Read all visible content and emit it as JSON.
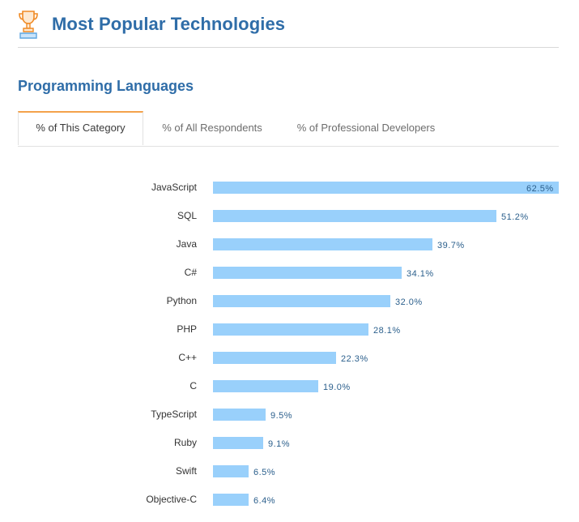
{
  "header": {
    "title": "Most Popular Technologies",
    "icon": "trophy-icon",
    "title_color": "#2f6da8"
  },
  "section": {
    "title": "Programming Languages"
  },
  "tabs": [
    {
      "label": "% of This Category",
      "active": true
    },
    {
      "label": "% of All Respondents",
      "active": false
    },
    {
      "label": "% of Professional Developers",
      "active": false
    }
  ],
  "colors": {
    "bar": "#99d0fb",
    "value_text": "#2b5f8c",
    "tab_accent": "#f4a24b"
  },
  "chart_data": {
    "type": "bar",
    "orientation": "horizontal",
    "title": "",
    "xlabel": "",
    "ylabel": "",
    "xlim": [
      0,
      62.5
    ],
    "grid": false,
    "categories": [
      "JavaScript",
      "SQL",
      "Java",
      "C#",
      "Python",
      "PHP",
      "C++",
      "C",
      "TypeScript",
      "Ruby",
      "Swift",
      "Objective-C"
    ],
    "values": [
      62.5,
      51.2,
      39.7,
      34.1,
      32.0,
      28.1,
      22.3,
      19.0,
      9.5,
      9.1,
      6.5,
      6.4
    ],
    "value_labels": [
      "62.5%",
      "51.2%",
      "39.7%",
      "34.1%",
      "32.0%",
      "28.1%",
      "22.3%",
      "19.0%",
      "9.5%",
      "9.1%",
      "6.5%",
      "6.4%"
    ]
  }
}
